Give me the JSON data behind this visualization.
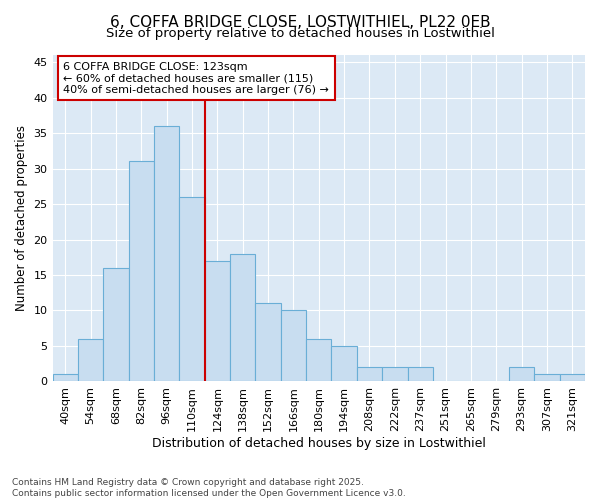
{
  "title1": "6, COFFA BRIDGE CLOSE, LOSTWITHIEL, PL22 0EB",
  "title2": "Size of property relative to detached houses in Lostwithiel",
  "xlabel": "Distribution of detached houses by size in Lostwithiel",
  "ylabel": "Number of detached properties",
  "categories": [
    "40sqm",
    "54sqm",
    "68sqm",
    "82sqm",
    "96sqm",
    "110sqm",
    "124sqm",
    "138sqm",
    "152sqm",
    "166sqm",
    "180sqm",
    "194sqm",
    "208sqm",
    "222sqm",
    "237sqm",
    "251sqm",
    "265sqm",
    "279sqm",
    "293sqm",
    "307sqm",
    "321sqm"
  ],
  "values": [
    1,
    6,
    16,
    31,
    36,
    26,
    17,
    18,
    11,
    10,
    6,
    5,
    2,
    2,
    2,
    0,
    0,
    0,
    2,
    1,
    1
  ],
  "bar_color": "#c8ddf0",
  "bar_edge_color": "#6aaed6",
  "vline_x": 5.5,
  "vline_color": "#cc0000",
  "annotation_text": "6 COFFA BRIDGE CLOSE: 123sqm\n← 60% of detached houses are smaller (115)\n40% of semi-detached houses are larger (76) →",
  "annotation_box_facecolor": "#ffffff",
  "annotation_box_edgecolor": "#cc0000",
  "ylim": [
    0,
    46
  ],
  "yticks": [
    0,
    5,
    10,
    15,
    20,
    25,
    30,
    35,
    40,
    45
  ],
  "plot_bg_color": "#dce9f5",
  "fig_bg_color": "#ffffff",
  "grid_color": "#ffffff",
  "footer": "Contains HM Land Registry data © Crown copyright and database right 2025.\nContains public sector information licensed under the Open Government Licence v3.0.",
  "title1_fontsize": 11,
  "title2_fontsize": 9.5,
  "xlabel_fontsize": 9,
  "ylabel_fontsize": 8.5,
  "tick_fontsize": 8,
  "annotation_fontsize": 8,
  "footer_fontsize": 6.5
}
